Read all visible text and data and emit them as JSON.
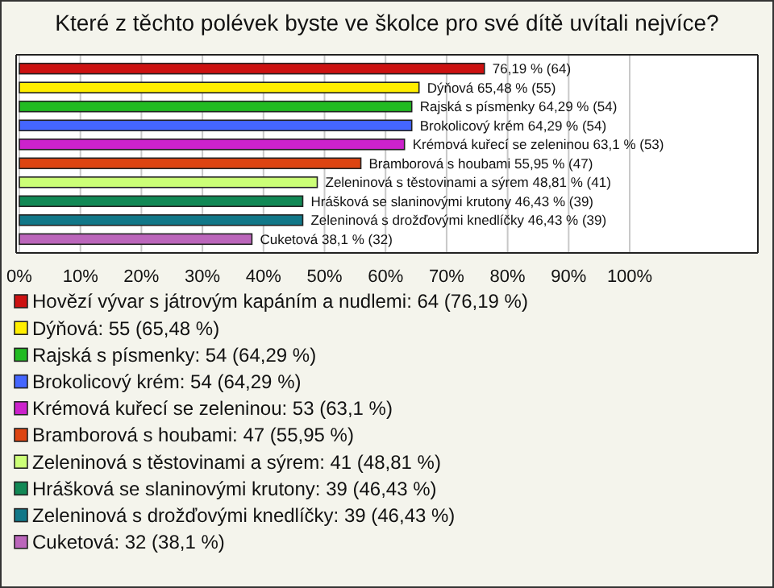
{
  "chart_data": {
    "type": "bar",
    "orientation": "horizontal",
    "title": "Které z těchto polévek byste ve školce pro své dítě uvítali nejvíce?",
    "categories": [
      null,
      null,
      null,
      null,
      null,
      null,
      null,
      null,
      null,
      null
    ],
    "series": [
      {
        "name": "Hovězí vývar s játrovým kapáním a nudlemi: 64 (76,19 %)",
        "color": "#cc1111",
        "values": [
          76.19,
          null,
          null,
          null,
          null,
          null,
          null,
          null,
          null,
          null
        ],
        "value_labels": [
          "76,19 % (64)",
          null,
          null,
          null,
          null,
          null,
          null,
          null,
          null,
          null
        ]
      },
      {
        "name": "Dýňová: 55 (65,48 %)",
        "color": "#ffee00",
        "values": [
          null,
          65.48,
          null,
          null,
          null,
          null,
          null,
          null,
          null,
          null
        ],
        "value_labels": [
          null,
          "Dýňová 65,48 % (55)",
          null,
          null,
          null,
          null,
          null,
          null,
          null,
          null
        ]
      },
      {
        "name": "Rajská s písmenky: 54 (64,29 %)",
        "color": "#22bb22",
        "values": [
          null,
          null,
          64.29,
          null,
          null,
          null,
          null,
          null,
          null,
          null
        ],
        "value_labels": [
          null,
          null,
          "Rajská s písmenky 64,29 % (54)",
          null,
          null,
          null,
          null,
          null,
          null,
          null
        ]
      },
      {
        "name": "Brokolicový krém: 54 (64,29 %)",
        "color": "#4466ff",
        "values": [
          null,
          null,
          null,
          64.29,
          null,
          null,
          null,
          null,
          null,
          null
        ],
        "value_labels": [
          null,
          null,
          null,
          "Brokolicový krém 64,29 % (54)",
          null,
          null,
          null,
          null,
          null,
          null
        ]
      },
      {
        "name": "Krémová kuřecí se zeleninou: 53 (63,1 %)",
        "color": "#cc22cc",
        "values": [
          null,
          null,
          null,
          null,
          63.1,
          null,
          null,
          null,
          null,
          null
        ],
        "value_labels": [
          null,
          null,
          null,
          null,
          "Krémová kuřecí se zeleninou 63,1 % (53)",
          null,
          null,
          null,
          null,
          null
        ]
      },
      {
        "name": "Bramborová s houbami: 47 (55,95 %)",
        "color": "#dd4411",
        "values": [
          null,
          null,
          null,
          null,
          null,
          55.95,
          null,
          null,
          null,
          null
        ],
        "value_labels": [
          null,
          null,
          null,
          null,
          null,
          "Bramborová s houbami 55,95 % (47)",
          null,
          null,
          null,
          null
        ]
      },
      {
        "name": "Zeleninová s těstovinami a sýrem: 41 (48,81 %)",
        "color": "#ccff77",
        "values": [
          null,
          null,
          null,
          null,
          null,
          null,
          48.81,
          null,
          null,
          null
        ],
        "value_labels": [
          null,
          null,
          null,
          null,
          null,
          null,
          "Zeleninová s těstovinami a sýrem 48,81 % (41)",
          null,
          null,
          null
        ]
      },
      {
        "name": "Hrášková se slaninovými krutony: 39 (46,43 %)",
        "color": "#118855",
        "values": [
          null,
          null,
          null,
          null,
          null,
          null,
          null,
          46.43,
          null,
          null
        ],
        "value_labels": [
          null,
          null,
          null,
          null,
          null,
          null,
          null,
          "Hrášková se slaninovými krutony 46,43 % (39)",
          null,
          null
        ]
      },
      {
        "name": "Zeleninová s drožďovými knedlíčky: 39 (46,43 %)",
        "color": "#117788",
        "values": [
          null,
          null,
          null,
          null,
          null,
          null,
          null,
          null,
          46.43,
          null
        ],
        "value_labels": [
          null,
          null,
          null,
          null,
          null,
          null,
          null,
          null,
          "Zeleninová s drožďovými knedlíčky 46,43 % (39)",
          null
        ]
      },
      {
        "name": "Cuketová: 32 (38,1 %)",
        "color": "#bb66bb",
        "values": [
          null,
          null,
          null,
          null,
          null,
          null,
          null,
          null,
          null,
          38.1
        ],
        "value_labels": [
          null,
          null,
          null,
          null,
          null,
          null,
          null,
          null,
          null,
          "Cuketová 38,1 % (32)"
        ]
      }
    ],
    "xlim": [
      0,
      121
    ],
    "xticks": [
      {
        "value": 0,
        "label": "0%"
      },
      {
        "value": 10,
        "label": "10%"
      },
      {
        "value": 20,
        "label": "20%"
      },
      {
        "value": 30,
        "label": "30%"
      },
      {
        "value": 40,
        "label": "40%"
      },
      {
        "value": 50,
        "label": "50%"
      },
      {
        "value": 60,
        "label": "60%"
      },
      {
        "value": 70,
        "label": "70%"
      },
      {
        "value": 80,
        "label": "80%"
      },
      {
        "value": 90,
        "label": "90%"
      },
      {
        "value": 100,
        "label": "100%"
      }
    ],
    "grid": "x",
    "legend": "bottom",
    "tick_labels": "x"
  }
}
